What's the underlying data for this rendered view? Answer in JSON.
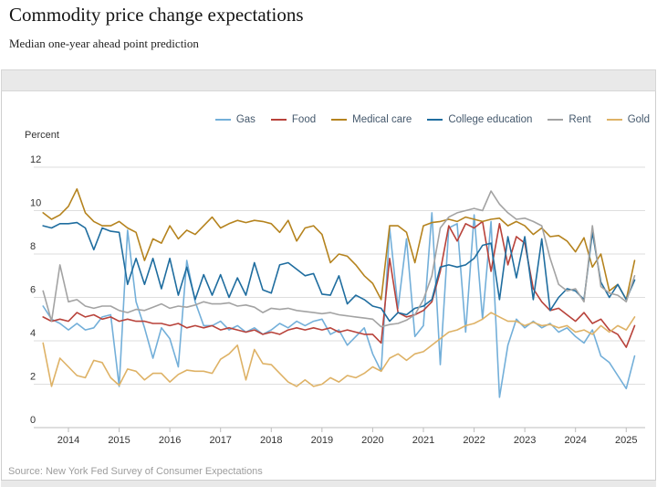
{
  "header": {
    "title": "Commodity price change expectations",
    "subtitle": "Median one-year ahead point prediction"
  },
  "footer": {
    "source": "Source: New York Fed Survey of Consumer Expectations"
  },
  "chart_data": {
    "type": "line",
    "title": "Commodity price change expectations",
    "subtitle": "Median one-year ahead point prediction",
    "ylabel": "Percent",
    "ylim": [
      0,
      12
    ],
    "ytick_step": 2,
    "grid": "horizontal",
    "legend_position": "top-right",
    "xticks": [
      2014,
      2015,
      2016,
      2017,
      2018,
      2019,
      2020,
      2021,
      2022,
      2023,
      2024,
      2025
    ],
    "x_start": 2013.5,
    "x_step_years": 0.16667,
    "series": [
      {
        "name": "Gas",
        "color": "#73afd9",
        "values": [
          5.6,
          5.0,
          4.8,
          4.5,
          4.8,
          4.5,
          4.6,
          5.1,
          5.2,
          1.9,
          9.1,
          5.8,
          4.6,
          3.2,
          4.6,
          4.1,
          2.8,
          7.7,
          5.8,
          4.7,
          4.7,
          4.9,
          4.5,
          4.7,
          4.4,
          4.6,
          4.3,
          4.5,
          4.8,
          4.6,
          4.9,
          4.7,
          4.9,
          5.0,
          4.3,
          4.5,
          3.8,
          4.2,
          4.6,
          3.4,
          2.6,
          9.2,
          5.5,
          8.7,
          4.2,
          4.7,
          9.9,
          2.9,
          9.2,
          9.4,
          4.4,
          9.8,
          5.0,
          9.5,
          1.4,
          3.8,
          5.0,
          4.6,
          4.9,
          4.6,
          4.8,
          4.4,
          4.6,
          4.2,
          3.9,
          4.5,
          3.3,
          3.0,
          2.4,
          1.8,
          3.3
        ]
      },
      {
        "name": "Food",
        "color": "#b8423a",
        "values": [
          5.1,
          4.9,
          5.0,
          4.9,
          5.3,
          5.1,
          5.2,
          5.0,
          5.1,
          4.9,
          5.0,
          4.9,
          4.9,
          4.8,
          4.8,
          4.7,
          4.8,
          4.6,
          4.7,
          4.6,
          4.7,
          4.5,
          4.6,
          4.5,
          4.4,
          4.5,
          4.3,
          4.4,
          4.3,
          4.5,
          4.6,
          4.5,
          4.6,
          4.5,
          4.6,
          4.4,
          4.5,
          4.4,
          4.3,
          4.3,
          3.9,
          7.8,
          5.3,
          5.1,
          5.2,
          5.4,
          5.8,
          7.2,
          9.3,
          8.6,
          9.4,
          9.2,
          9.5,
          7.2,
          9.4,
          7.5,
          8.8,
          8.5,
          6.4,
          5.8,
          5.4,
          5.5,
          5.2,
          4.9,
          5.3,
          4.8,
          5.0,
          4.5,
          4.3,
          3.7,
          4.7
        ]
      },
      {
        "name": "Medical care",
        "color": "#b5831e",
        "values": [
          9.9,
          9.6,
          9.8,
          10.2,
          11.0,
          9.9,
          9.5,
          9.3,
          9.3,
          9.5,
          9.2,
          9.0,
          7.7,
          8.7,
          8.5,
          9.3,
          8.7,
          9.1,
          8.9,
          9.3,
          9.7,
          9.2,
          9.4,
          9.55,
          9.45,
          9.55,
          9.5,
          9.4,
          9.0,
          9.55,
          8.6,
          9.2,
          9.3,
          8.9,
          7.6,
          8.0,
          7.9,
          7.5,
          7.0,
          6.65,
          5.9,
          9.3,
          9.3,
          9.0,
          7.6,
          9.3,
          9.45,
          9.5,
          9.6,
          9.5,
          9.7,
          9.6,
          9.5,
          9.6,
          9.65,
          9.3,
          9.5,
          9.3,
          8.9,
          9.2,
          8.8,
          8.85,
          8.6,
          8.1,
          8.75,
          7.4,
          8.0,
          6.3,
          6.6,
          5.9,
          7.7
        ]
      },
      {
        "name": "College education",
        "color": "#1f6d9f",
        "values": [
          9.3,
          9.2,
          9.4,
          9.4,
          9.45,
          9.2,
          8.2,
          9.2,
          9.05,
          9.0,
          6.6,
          7.8,
          6.6,
          7.8,
          6.4,
          7.8,
          6.1,
          7.4,
          5.9,
          7.05,
          6.1,
          7.05,
          6.0,
          6.9,
          6.1,
          7.6,
          6.35,
          6.2,
          7.5,
          7.6,
          7.3,
          7.0,
          7.1,
          6.15,
          6.1,
          7.0,
          5.7,
          6.1,
          5.9,
          5.6,
          5.5,
          4.9,
          5.3,
          5.2,
          5.5,
          5.6,
          5.9,
          7.4,
          7.5,
          7.4,
          7.5,
          7.8,
          8.4,
          8.5,
          5.9,
          8.8,
          6.9,
          8.8,
          5.9,
          8.7,
          5.4,
          6.0,
          6.4,
          6.3,
          5.9,
          9.0,
          6.7,
          6.0,
          6.6,
          5.9,
          6.8
        ]
      },
      {
        "name": "Rent",
        "color": "#a3a3a3",
        "values": [
          6.3,
          4.9,
          7.5,
          5.8,
          5.9,
          5.6,
          5.5,
          5.6,
          5.6,
          5.4,
          5.3,
          5.45,
          5.4,
          5.55,
          5.7,
          5.5,
          5.6,
          5.55,
          5.65,
          5.8,
          5.7,
          5.7,
          5.75,
          5.6,
          5.65,
          5.55,
          5.3,
          5.5,
          5.45,
          5.5,
          5.4,
          5.35,
          5.3,
          5.25,
          5.3,
          5.2,
          5.15,
          5.1,
          5.05,
          5.0,
          4.65,
          4.75,
          4.8,
          4.95,
          5.2,
          5.9,
          7.0,
          9.2,
          9.7,
          9.9,
          10.0,
          10.1,
          10.0,
          10.9,
          10.3,
          9.9,
          9.6,
          9.65,
          9.5,
          9.3,
          7.8,
          6.6,
          6.3,
          6.4,
          5.8,
          9.3,
          6.5,
          6.2,
          6.1,
          5.8,
          7.0
        ]
      },
      {
        "name": "Gold",
        "color": "#deb266",
        "values": [
          3.9,
          1.9,
          3.2,
          2.8,
          2.4,
          2.3,
          3.1,
          3.0,
          2.3,
          1.95,
          2.7,
          2.6,
          2.2,
          2.5,
          2.5,
          2.1,
          2.45,
          2.65,
          2.6,
          2.6,
          2.5,
          3.15,
          3.4,
          3.8,
          2.2,
          3.6,
          2.95,
          2.9,
          2.5,
          2.1,
          1.9,
          2.2,
          1.9,
          2.0,
          2.3,
          2.1,
          2.4,
          2.3,
          2.5,
          2.8,
          2.6,
          3.2,
          3.4,
          3.1,
          3.4,
          3.5,
          3.8,
          4.1,
          4.4,
          4.5,
          4.7,
          4.8,
          5.0,
          5.3,
          5.1,
          4.9,
          4.9,
          4.7,
          4.85,
          4.7,
          4.75,
          4.6,
          4.7,
          4.4,
          4.5,
          4.3,
          4.7,
          4.4,
          4.7,
          4.5,
          5.1
        ]
      }
    ]
  }
}
